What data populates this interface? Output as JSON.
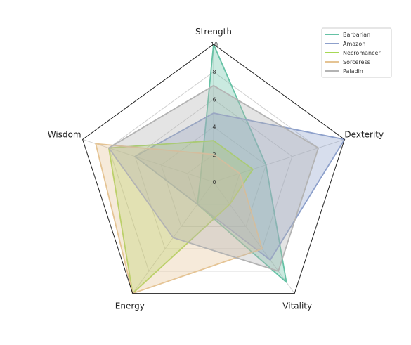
{
  "chart_data": {
    "type": "radar",
    "axes": [
      "Strength",
      "Dexterity",
      "Vitality",
      "Energy",
      "Wisdom"
    ],
    "radial_ticks": [
      0,
      2,
      4,
      6,
      8,
      10
    ],
    "rlim": [
      0,
      10
    ],
    "legend_position": "top-right",
    "series": [
      {
        "name": "Barbarian",
        "color": "#66c2a5",
        "values": [
          10,
          4,
          9,
          2,
          1
        ]
      },
      {
        "name": "Amazon",
        "color": "#8da0cb",
        "values": [
          5,
          10,
          7,
          2,
          6
        ]
      },
      {
        "name": "Necromancer",
        "color": "#a6d854",
        "values": [
          3,
          3,
          2,
          10,
          8
        ]
      },
      {
        "name": "Sorceress",
        "color": "#e5c494",
        "values": [
          2,
          2,
          6,
          10,
          9
        ]
      },
      {
        "name": "Paladin",
        "color": "#b3b3b3",
        "values": [
          7,
          8,
          8,
          5,
          8
        ]
      }
    ]
  }
}
